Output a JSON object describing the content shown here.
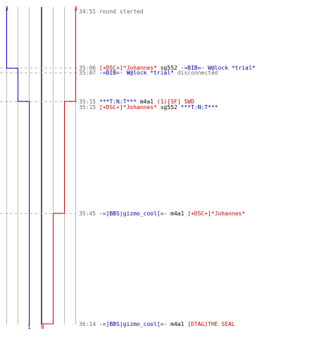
{
  "scores": {
    "blue_start": "3",
    "red_start": "3",
    "blue_end": "1",
    "red_end": "0"
  },
  "colors": {
    "blue": "#0000cc",
    "red": "#cc0000",
    "grid": "#bbbbbb",
    "time": "#666666"
  },
  "events": [
    {
      "time": "34:51",
      "parts": [
        {
          "text": "round started",
          "color": "gray"
        }
      ]
    },
    {
      "time": "35:06",
      "parts": [
        {
          "text": "[+DSC+]*Johannes*",
          "color": "red"
        },
        {
          "text": " sg552 ",
          "color": "black"
        },
        {
          "text": "-=BIB=- W@lock *trial*",
          "color": "blue"
        }
      ]
    },
    {
      "time": "35:07",
      "parts": [
        {
          "text": "-=BIB=- W@lock *trial*",
          "color": "blue"
        },
        {
          "text": " disconnected",
          "color": "gray"
        }
      ]
    },
    {
      "time": "35:15",
      "parts": [
        {
          "text": "***T:N:T***",
          "color": "blue"
        },
        {
          "text": " m4a1 ",
          "color": "black"
        },
        {
          "text": "(1)[SF] SWD",
          "color": "red"
        }
      ]
    },
    {
      "time": "35:15",
      "parts": [
        {
          "text": "[+DSC+]*Johannes*",
          "color": "red"
        },
        {
          "text": " sg552 ",
          "color": "black"
        },
        {
          "text": "***T:N:T***",
          "color": "blue"
        }
      ]
    },
    {
      "time": "35:45",
      "parts": [
        {
          "text": "-=]BBS|gizmo_cool[=-",
          "color": "blue"
        },
        {
          "text": " m4a1 ",
          "color": "black"
        },
        {
          "text": "[+DSC+]*Johannes*",
          "color": "red"
        }
      ]
    },
    {
      "time": "36:14",
      "parts": [
        {
          "text": "-=]BBS|gizmo_cool[=-",
          "color": "blue"
        },
        {
          "text": " m4a1 ",
          "color": "black"
        },
        {
          "text": "[DTAG]THE SEAL",
          "color": "red"
        }
      ]
    }
  ]
}
